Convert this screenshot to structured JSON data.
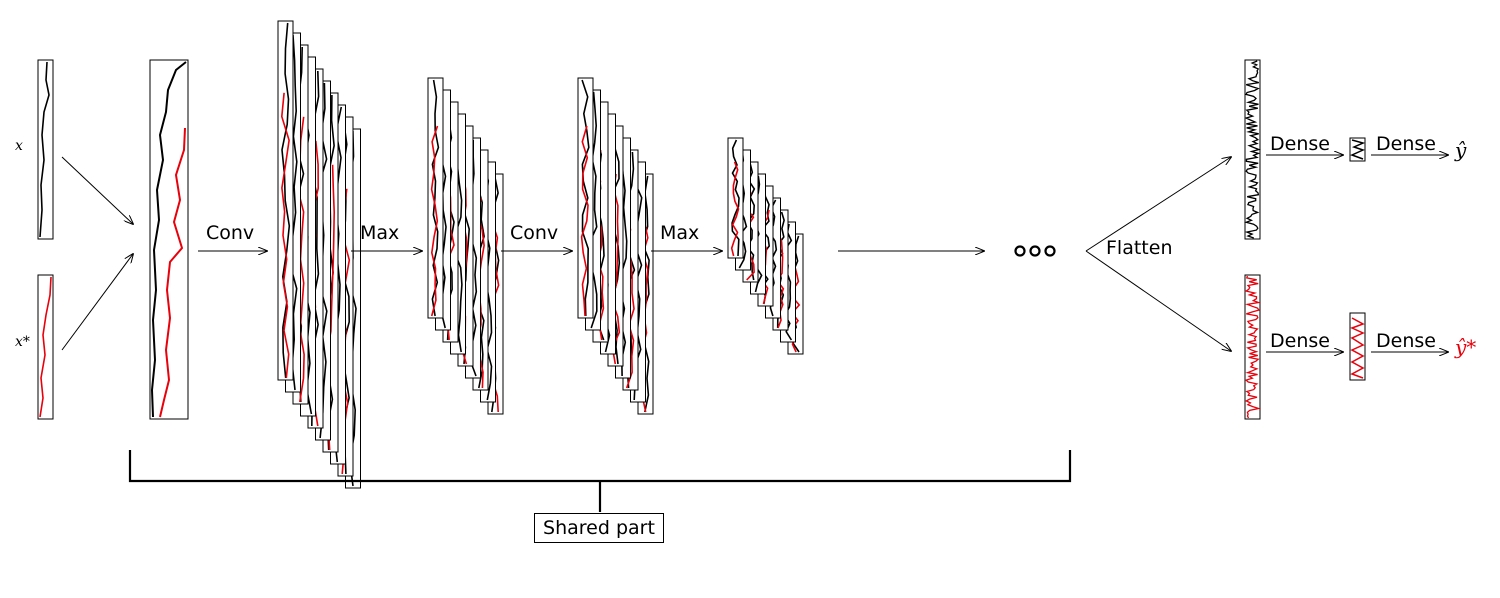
{
  "inputs": {
    "x_label": "x",
    "x_star_label": "x*"
  },
  "operations": {
    "conv1": "Conv",
    "max1": "Max",
    "conv2": "Conv",
    "max2": "Max",
    "flatten": "Flatten",
    "dense_top_1": "Dense",
    "dense_top_2": "Dense",
    "dense_bottom_1": "Dense",
    "dense_bottom_2": "Dense"
  },
  "outputs": {
    "y_hat": "ŷ",
    "y_hat_star": "ŷ*"
  },
  "shared_label": "Shared part",
  "colors": {
    "primary_trace": "#000000",
    "secondary_trace": "#e8000b",
    "frame": "#000000"
  }
}
